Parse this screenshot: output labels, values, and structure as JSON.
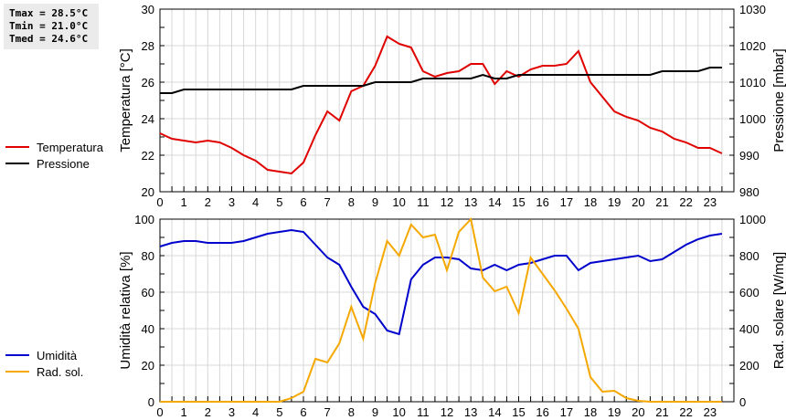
{
  "stats": {
    "tmax": "Tmax = 28.5°C",
    "tmin": "Tmin = 21.0°C",
    "tmed": "Tmed = 24.6°C"
  },
  "legend_top": [
    {
      "label": "Temperatura",
      "color": "#e00000"
    },
    {
      "label": "Pressione",
      "color": "#000000"
    }
  ],
  "legend_bottom": [
    {
      "label": "Umidità",
      "color": "#0000cc"
    },
    {
      "label": "Rad. sol.",
      "color": "#f5a800"
    }
  ],
  "chart_data": [
    {
      "type": "line",
      "title": "",
      "xlabel": "",
      "ylabel": "Temperatura [°C]",
      "y2label": "Pressione [mbar]",
      "x_ticks": [
        "0",
        "1",
        "2",
        "3",
        "4",
        "5",
        "6",
        "7",
        "8",
        "9",
        "10",
        "11",
        "12",
        "13",
        "14",
        "15",
        "16",
        "17",
        "18",
        "19",
        "20",
        "21",
        "22",
        "23"
      ],
      "ylim": [
        20,
        30
      ],
      "y_ticks": [
        20,
        22,
        24,
        26,
        28,
        30
      ],
      "y2lim": [
        980,
        1030
      ],
      "y2_ticks": [
        980,
        990,
        1000,
        1010,
        1020,
        1030
      ],
      "grid": true,
      "x": [
        0,
        0.5,
        1,
        1.5,
        2,
        2.5,
        3,
        3.5,
        4,
        4.5,
        5,
        5.5,
        6,
        6.5,
        7,
        7.5,
        8,
        8.5,
        9,
        9.5,
        10,
        10.5,
        11,
        11.5,
        12,
        12.5,
        13,
        13.5,
        14,
        14.5,
        15,
        15.5,
        16,
        16.5,
        17,
        17.5,
        18,
        18.5,
        19,
        19.5,
        20,
        20.5,
        21,
        21.5,
        22,
        22.5,
        23,
        23.5
      ],
      "series": [
        {
          "name": "Temperatura",
          "axis": "left",
          "color": "#e00000",
          "values": [
            23.2,
            22.9,
            22.8,
            22.7,
            22.8,
            22.7,
            22.4,
            22.0,
            21.7,
            21.2,
            21.1,
            21.0,
            21.6,
            23.1,
            24.4,
            23.9,
            25.5,
            25.8,
            26.9,
            28.5,
            28.1,
            27.9,
            26.6,
            26.3,
            26.5,
            26.6,
            27.0,
            27.0,
            25.9,
            26.6,
            26.3,
            26.7,
            26.9,
            26.9,
            27.0,
            27.7,
            26.0,
            25.2,
            24.4,
            24.1,
            23.9,
            23.5,
            23.3,
            22.9,
            22.7,
            22.4,
            22.4,
            22.1
          ]
        },
        {
          "name": "Pressione",
          "axis": "right",
          "color": "#000000",
          "values": [
            1007,
            1007,
            1008,
            1008,
            1008,
            1008,
            1008,
            1008,
            1008,
            1008,
            1008,
            1008,
            1009,
            1009,
            1009,
            1009,
            1009,
            1009,
            1010,
            1010,
            1010,
            1010,
            1011,
            1011,
            1011,
            1011,
            1011,
            1012,
            1011,
            1011,
            1012,
            1012,
            1012,
            1012,
            1012,
            1012,
            1012,
            1012,
            1012,
            1012,
            1012,
            1012,
            1013,
            1013,
            1013,
            1013,
            1014,
            1014
          ]
        }
      ]
    },
    {
      "type": "line",
      "title": "",
      "xlabel": "",
      "ylabel": "Umidità relativa [%]",
      "y2label": "Rad. solare [W/mq]",
      "x_ticks": [
        "0",
        "1",
        "2",
        "3",
        "4",
        "5",
        "6",
        "7",
        "8",
        "9",
        "10",
        "11",
        "12",
        "13",
        "14",
        "15",
        "16",
        "17",
        "18",
        "19",
        "20",
        "21",
        "22",
        "23"
      ],
      "ylim": [
        0,
        100
      ],
      "y_ticks": [
        0,
        20,
        40,
        60,
        80,
        100
      ],
      "y2lim": [
        0,
        1000
      ],
      "y2_ticks": [
        0,
        200,
        400,
        600,
        800,
        1000
      ],
      "grid": true,
      "x": [
        0,
        0.5,
        1,
        1.5,
        2,
        2.5,
        3,
        3.5,
        4,
        4.5,
        5,
        5.5,
        6,
        6.5,
        7,
        7.5,
        8,
        8.5,
        9,
        9.5,
        10,
        10.5,
        11,
        11.5,
        12,
        12.5,
        13,
        13.5,
        14,
        14.5,
        15,
        15.5,
        16,
        16.5,
        17,
        17.5,
        18,
        18.5,
        19,
        19.5,
        20,
        20.5,
        21,
        21.5,
        22,
        22.5,
        23,
        23.5
      ],
      "series": [
        {
          "name": "Umidità",
          "axis": "left",
          "color": "#0000cc",
          "values": [
            85,
            87,
            88,
            88,
            87,
            87,
            87,
            88,
            90,
            92,
            93,
            94,
            93,
            86,
            79,
            75,
            63,
            52,
            48,
            39,
            37,
            67,
            75,
            79,
            79,
            78,
            73,
            72,
            75,
            72,
            75,
            76,
            78,
            80,
            80,
            72,
            76,
            77,
            78,
            79,
            80,
            77,
            78,
            82,
            86,
            89,
            91,
            92
          ]
        },
        {
          "name": "Rad. sol.",
          "axis": "right",
          "color": "#f5a800",
          "values": [
            0,
            0,
            0,
            0,
            0,
            0,
            0,
            0,
            0,
            0,
            0,
            20,
            55,
            235,
            215,
            320,
            520,
            345,
            650,
            880,
            800,
            970,
            900,
            915,
            720,
            930,
            1000,
            680,
            605,
            630,
            485,
            790,
            700,
            610,
            510,
            400,
            135,
            55,
            60,
            20,
            5,
            0,
            0,
            0,
            0,
            0,
            0,
            0
          ]
        }
      ]
    }
  ]
}
